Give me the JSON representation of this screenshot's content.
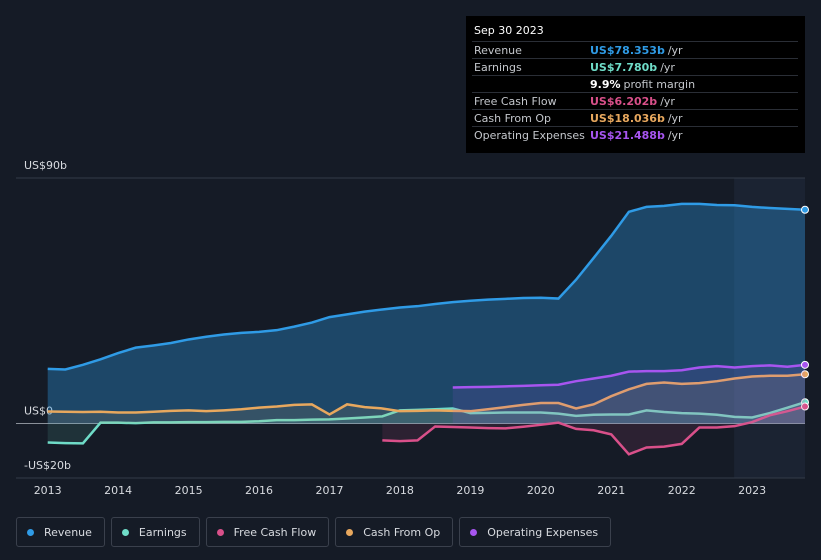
{
  "chart_data": {
    "type": "line",
    "x": [
      2013,
      2013.25,
      2013.5,
      2013.75,
      2014,
      2014.25,
      2014.5,
      2014.75,
      2015,
      2015.25,
      2015.5,
      2015.75,
      2016,
      2016.25,
      2016.5,
      2016.75,
      2017,
      2017.25,
      2017.5,
      2017.75,
      2018,
      2018.25,
      2018.5,
      2018.75,
      2019,
      2019.25,
      2019.5,
      2019.75,
      2020,
      2020.25,
      2020.5,
      2020.75,
      2021,
      2021.25,
      2021.5,
      2021.75,
      2022,
      2022.25,
      2022.5,
      2022.75,
      2023,
      2023.25,
      2023.5,
      2023.75
    ],
    "series": [
      {
        "name": "Revenue",
        "color": "#2f9be6",
        "values": [
          20,
          19.8,
          21.5,
          23.5,
          25.8,
          27.8,
          28.6,
          29.5,
          30.8,
          31.8,
          32.6,
          33.2,
          33.6,
          34.2,
          35.5,
          37,
          39,
          40,
          41,
          41.8,
          42.5,
          43,
          43.8,
          44.5,
          45,
          45.4,
          45.7,
          46,
          46.1,
          45.8,
          52.7,
          60.7,
          68.8,
          77.6,
          79.4,
          79.8,
          80.5,
          80.5,
          80.1,
          80,
          79.4,
          79,
          78.7,
          78.353
        ]
      },
      {
        "name": "Earnings",
        "color": "#6fdcc8",
        "values": [
          -7,
          -7.2,
          -7.3,
          0.3,
          0.3,
          0.1,
          0.4,
          0.4,
          0.5,
          0.5,
          0.6,
          0.6,
          0.8,
          1.2,
          1.2,
          1.4,
          1.5,
          1.8,
          2.2,
          2.6,
          4.8,
          5,
          5.2,
          5.5,
          3.8,
          3.9,
          4,
          4,
          4,
          3.6,
          2.8,
          3.2,
          3.3,
          3.3,
          4.8,
          4.2,
          3.8,
          3.6,
          3.2,
          2.4,
          2.2,
          3.8,
          5.8,
          7.78
        ]
      },
      {
        "name": "Free Cash Flow",
        "color": "#d9508a",
        "values": [
          null,
          null,
          null,
          null,
          null,
          null,
          null,
          null,
          null,
          null,
          null,
          null,
          null,
          null,
          null,
          null,
          null,
          null,
          null,
          -6.2,
          -6.5,
          -6.2,
          -1.1,
          -1.3,
          -1.5,
          -1.7,
          -1.8,
          -1.2,
          -0.5,
          0.3,
          -2,
          -2.5,
          -4,
          -11.3,
          -8.8,
          -8.5,
          -7.5,
          -1.5,
          -1.5,
          -1,
          0.5,
          3,
          4.5,
          6.202
        ]
      },
      {
        "name": "Cash From Op",
        "color": "#e8a85e",
        "values": [
          4.4,
          4.3,
          4.2,
          4.3,
          4,
          4,
          4.3,
          4.6,
          4.8,
          4.5,
          4.8,
          5.2,
          5.8,
          6.2,
          6.8,
          7,
          3.3,
          7,
          6,
          5.5,
          4.5,
          4.6,
          4.8,
          4.6,
          4.5,
          5.2,
          6,
          6.8,
          7.5,
          7.5,
          5.5,
          7,
          10,
          12.5,
          14.5,
          15,
          14.5,
          14.8,
          15.5,
          16.5,
          17.2,
          17.5,
          17.5,
          18.036
        ]
      },
      {
        "name": "Operating Expenses",
        "color": "#a755f0",
        "values": [
          null,
          null,
          null,
          null,
          null,
          null,
          null,
          null,
          null,
          null,
          null,
          null,
          null,
          null,
          null,
          null,
          null,
          null,
          null,
          null,
          null,
          null,
          null,
          13.2,
          13.3,
          13.4,
          13.6,
          13.8,
          14,
          14.2,
          15.5,
          16.5,
          17.5,
          19,
          19.2,
          19.2,
          19.5,
          20.5,
          21,
          20.5,
          21,
          21.3,
          20.8,
          21.488
        ]
      }
    ],
    "xlim": [
      2012.55,
      2023.75
    ],
    "xticks": [
      2013,
      2014,
      2015,
      2016,
      2017,
      2018,
      2019,
      2020,
      2021,
      2022,
      2023
    ],
    "ylim": [
      -20,
      90
    ],
    "yticks": [
      {
        "value": 90,
        "label": "US$90b"
      },
      {
        "value": 0,
        "label": "US$0"
      },
      {
        "value": -20,
        "label": "-US$20b"
      }
    ],
    "tooltip": {
      "date": "Sep 30 2023",
      "rows": [
        {
          "label": "Revenue",
          "value": "US$78.353b",
          "unit": "/yr"
        },
        {
          "label": "Earnings",
          "value": "US$7.780b",
          "unit": "/yr"
        },
        {
          "label": "Free Cash Flow",
          "value": "US$6.202b",
          "unit": "/yr"
        },
        {
          "label": "Cash From Op",
          "value": "US$18.036b",
          "unit": "/yr"
        },
        {
          "label": "Operating Expenses",
          "value": "US$21.488b",
          "unit": "/yr"
        }
      ],
      "margin": {
        "value": "9.9%",
        "label": "profit margin"
      }
    }
  }
}
